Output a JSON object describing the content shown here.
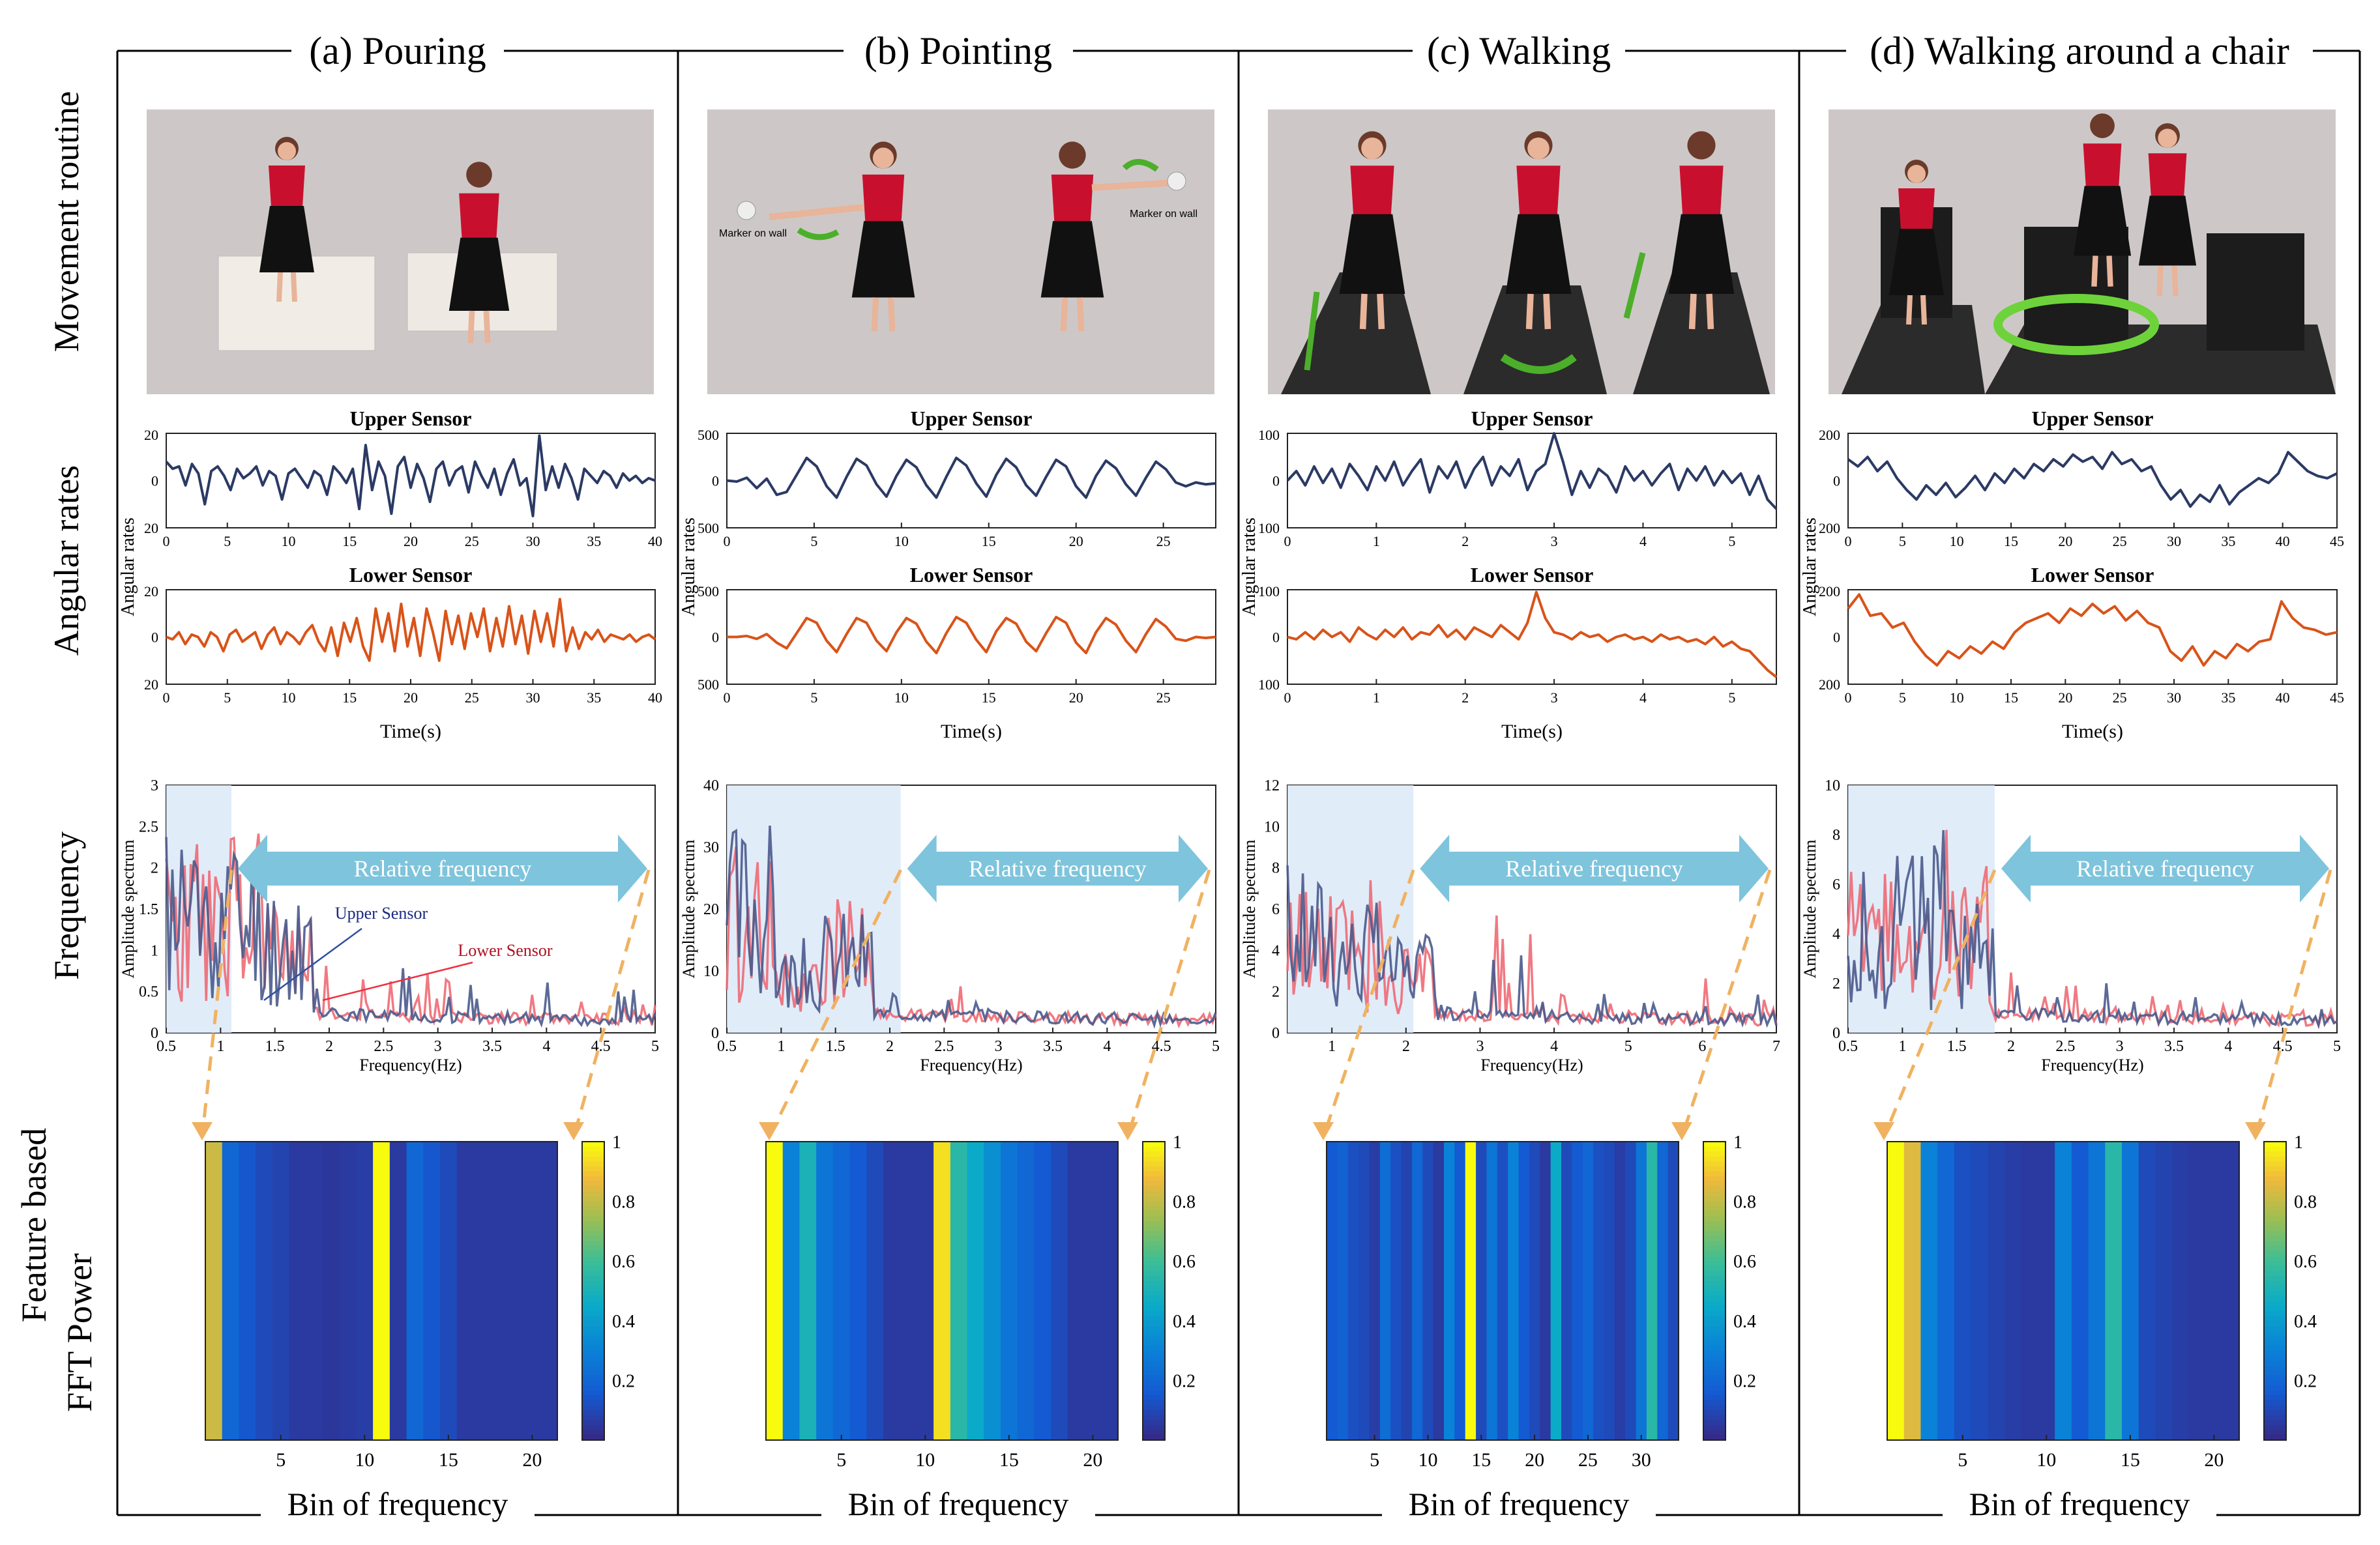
{
  "figure": {
    "row_labels": [
      "Movement routine",
      "Angular rates",
      "Frequency",
      "Feature based",
      "FFT Power"
    ],
    "signal_titles": {
      "upper": "Upper Sensor",
      "lower": "Lower Sensor"
    },
    "signal_ylabel": "Angular rates",
    "signal_xlabel": "Time(s)",
    "freq_ylabel": "Amplitude spectrum",
    "freq_xlabel": "Frequency(Hz)",
    "relative_label": "Relative frequency",
    "heatmap_xlabel": "Bin of frequency",
    "colorbar_ticks": [
      "0.2",
      "0.4",
      "0.6",
      "0.8",
      "1"
    ],
    "annot_upper": "Upper Sensor",
    "annot_lower": "Lower Sensor",
    "marker_label": "Marker on wall",
    "colors": {
      "upper": "#2b3a64",
      "lower": "#d95319",
      "freq_upper": "#4a5a8c",
      "freq_lower": "#ee6a74",
      "arrow": "#7ec4dc",
      "shade": "#dce9f8",
      "dashed": "#f0b261",
      "photo_bg": "#cdc8c7"
    }
  },
  "chart_data": [
    {
      "id": "pouring",
      "title": "(a) Pouring",
      "type": "line",
      "signal": {
        "xlim": [
          0,
          40
        ],
        "xticks": [
          0,
          5,
          10,
          15,
          20,
          25,
          30,
          35,
          40
        ],
        "ylim": [
          -20,
          20
        ],
        "yticks": [
          "20",
          "0",
          "20"
        ],
        "upper_series": [
          8,
          5,
          6,
          -2,
          7,
          3,
          -10,
          4,
          6,
          2,
          -4,
          5,
          1,
          3,
          6,
          -2,
          4,
          2,
          -8,
          3,
          5,
          1,
          -3,
          4,
          2,
          -6,
          6,
          3,
          -1,
          5,
          -12,
          15,
          -4,
          8,
          2,
          -14,
          6,
          10,
          -3,
          7,
          1,
          -9,
          5,
          8,
          -2,
          4,
          6,
          -5,
          8,
          2,
          -3,
          5,
          -6,
          3,
          9,
          -2,
          1,
          -15,
          19,
          -4,
          6,
          -3,
          7,
          1,
          -8,
          5,
          2,
          -1,
          4,
          2,
          -3,
          3,
          0,
          2,
          -1,
          1,
          0
        ],
        "lower_series": [
          0,
          -1,
          2,
          -3,
          1,
          0,
          -4,
          2,
          0,
          -6,
          1,
          3,
          -2,
          0,
          2,
          -5,
          1,
          4,
          -3,
          2,
          0,
          -3,
          2,
          5,
          -2,
          -6,
          4,
          -8,
          6,
          -2,
          8,
          -4,
          -10,
          12,
          -2,
          10,
          -6,
          14,
          -4,
          8,
          -8,
          12,
          2,
          -10,
          11,
          -3,
          9,
          -5,
          10,
          0,
          12,
          -6,
          8,
          -4,
          13,
          -3,
          9,
          -7,
          11,
          -2,
          10,
          -4,
          16,
          -6,
          4,
          -5,
          2,
          -1,
          3,
          -2,
          1,
          0,
          -1,
          1,
          -2,
          0,
          1,
          -1
        ]
      },
      "frequency": {
        "xlim": [
          0.5,
          5
        ],
        "xticks": [
          0.5,
          1,
          1.5,
          2,
          2.5,
          3,
          3.5,
          4,
          4.5,
          5
        ],
        "ylim": [
          0,
          3
        ],
        "yticks": [
          0,
          0.5,
          1,
          1.5,
          2,
          2.5,
          3
        ],
        "shade_to": 1.1,
        "upper_peaks": [
          2.5,
          2.4,
          1.8,
          1.3,
          1.6,
          1.1,
          0.9,
          1.0,
          0.8,
          0.7
        ],
        "lower_peaks": [
          2.2,
          2.6,
          1.5,
          1.7,
          1.2,
          1.3,
          0.8,
          0.9,
          0.7,
          0.6
        ]
      },
      "heatmap": {
        "bins": 21,
        "values": [
          0.82,
          0.2,
          0.14,
          0.1,
          0.08,
          0.05,
          0.05,
          0.04,
          0.05,
          0.06,
          1.0,
          0.05,
          0.2,
          0.14,
          0.1,
          0.05,
          0.05,
          0.05,
          0.05,
          0.05,
          0.05
        ],
        "xticks": [
          5,
          10,
          15,
          20
        ]
      }
    },
    {
      "id": "pointing",
      "title": "(b) Pointing",
      "type": "line",
      "signal": {
        "xlim": [
          0,
          28
        ],
        "xticks": [
          0,
          5,
          10,
          15,
          20,
          25
        ],
        "ylim": [
          -500,
          500
        ],
        "yticks": [
          "500",
          "0",
          "500"
        ],
        "upper_series": [
          0,
          -10,
          30,
          -80,
          20,
          -150,
          -120,
          60,
          240,
          150,
          -60,
          -180,
          40,
          230,
          160,
          -40,
          -170,
          50,
          220,
          140,
          -50,
          -180,
          40,
          240,
          160,
          -30,
          -170,
          60,
          230,
          140,
          -50,
          -160,
          40,
          220,
          150,
          -60,
          -180,
          50,
          210,
          130,
          -40,
          -160,
          30,
          200,
          120,
          -20,
          -60,
          -20,
          -40,
          -30
        ],
        "lower_series": [
          0,
          0,
          10,
          -20,
          30,
          -60,
          -120,
          40,
          200,
          150,
          -40,
          -160,
          30,
          200,
          150,
          -40,
          -150,
          50,
          200,
          140,
          -50,
          -170,
          40,
          210,
          150,
          -30,
          -160,
          60,
          200,
          140,
          -50,
          -150,
          40,
          210,
          150,
          -60,
          -170,
          50,
          200,
          130,
          -40,
          -160,
          30,
          190,
          110,
          -20,
          -40,
          0,
          -10,
          0
        ]
      },
      "frequency": {
        "xlim": [
          0.5,
          5
        ],
        "xticks": [
          0.5,
          1,
          1.5,
          2,
          2.5,
          3,
          3.5,
          4,
          4.5,
          5
        ],
        "ylim": [
          0,
          40
        ],
        "yticks": [
          0,
          10,
          20,
          30,
          40
        ],
        "shade_to": 2.1,
        "upper_peaks": [
          34,
          12,
          18,
          8,
          11,
          4,
          2,
          1.5,
          1,
          1
        ],
        "lower_peaks": [
          30,
          10,
          22,
          6,
          9,
          3,
          2,
          1,
          1,
          1
        ]
      },
      "heatmap": {
        "bins": 21,
        "values": [
          1.0,
          0.3,
          0.5,
          0.25,
          0.2,
          0.15,
          0.1,
          0.05,
          0.05,
          0.05,
          0.95,
          0.55,
          0.45,
          0.35,
          0.25,
          0.2,
          0.15,
          0.1,
          0.05,
          0.05,
          0.05
        ],
        "xticks": [
          5,
          10,
          15,
          20
        ]
      }
    },
    {
      "id": "walking",
      "title": "(c) Walking",
      "type": "line",
      "signal": {
        "xlim": [
          0,
          5.5
        ],
        "xticks": [
          0,
          1,
          2,
          3,
          4,
          5
        ],
        "ylim": [
          -100,
          100
        ],
        "yticks": [
          "100",
          "0",
          "100"
        ],
        "upper_series": [
          0,
          20,
          -10,
          30,
          -5,
          25,
          -15,
          35,
          10,
          -20,
          30,
          0,
          40,
          -10,
          20,
          45,
          -25,
          30,
          5,
          40,
          -15,
          25,
          50,
          -10,
          30,
          10,
          45,
          -20,
          20,
          35,
          100,
          40,
          -30,
          20,
          -15,
          25,
          10,
          -25,
          30,
          0,
          20,
          -10,
          15,
          35,
          -20,
          25,
          0,
          30,
          -10,
          20,
          -5,
          15,
          -30,
          10,
          -40,
          -60
        ],
        "lower_series": [
          0,
          -5,
          10,
          -5,
          15,
          0,
          10,
          -10,
          20,
          5,
          -5,
          15,
          0,
          20,
          -5,
          10,
          5,
          25,
          0,
          15,
          -5,
          20,
          10,
          0,
          25,
          10,
          -5,
          30,
          95,
          40,
          10,
          5,
          -5,
          10,
          0,
          5,
          -10,
          0,
          5,
          -5,
          0,
          -10,
          5,
          -5,
          0,
          -10,
          -5,
          -15,
          0,
          -20,
          -10,
          -25,
          -30,
          -50,
          -70,
          -85
        ]
      },
      "frequency": {
        "xlim": [
          0.4,
          7
        ],
        "xticks": [
          1,
          2,
          3,
          4,
          5,
          6,
          7
        ],
        "ylim": [
          0,
          12
        ],
        "yticks": [
          0,
          2,
          4,
          6,
          8,
          10,
          12
        ],
        "shade_to": 2.1,
        "upper_peaks": [
          8,
          6,
          4.5,
          3,
          6.5,
          2,
          2.5,
          2,
          3,
          4
        ],
        "lower_peaks": [
          6.5,
          7,
          3.5,
          2,
          10.3,
          2.5,
          2,
          2.5,
          6,
          1.5
        ]
      },
      "heatmap": {
        "bins": 33,
        "values": [
          0.15,
          0.18,
          0.12,
          0.1,
          0.06,
          0.22,
          0.12,
          0.08,
          0.2,
          0.1,
          0.05,
          0.3,
          0.15,
          1.0,
          0.1,
          0.25,
          0.12,
          0.3,
          0.15,
          0.1,
          0.05,
          0.45,
          0.1,
          0.15,
          0.2,
          0.12,
          0.1,
          0.06,
          0.1,
          0.25,
          0.55,
          0.2,
          0.1
        ],
        "xticks": [
          5,
          10,
          15,
          20,
          25,
          30
        ]
      }
    },
    {
      "id": "chair",
      "title": "(d) Walking around a chair",
      "type": "line",
      "signal": {
        "xlim": [
          0,
          45
        ],
        "xticks": [
          0,
          5,
          10,
          15,
          20,
          25,
          30,
          35,
          40,
          45
        ],
        "ylim": [
          -200,
          200
        ],
        "yticks": [
          "200",
          "0",
          "200"
        ],
        "upper_series": [
          90,
          60,
          100,
          40,
          80,
          10,
          -40,
          -80,
          -20,
          -60,
          -10,
          -70,
          -30,
          20,
          -40,
          30,
          -10,
          50,
          10,
          70,
          40,
          90,
          60,
          110,
          80,
          100,
          50,
          120,
          70,
          90,
          40,
          60,
          -20,
          -80,
          -40,
          -110,
          -60,
          -90,
          -20,
          -100,
          -50,
          -20,
          10,
          -10,
          30,
          120,
          80,
          40,
          20,
          10,
          30
        ],
        "lower_series": [
          120,
          180,
          90,
          100,
          40,
          60,
          -20,
          -80,
          -120,
          -60,
          -90,
          -40,
          -70,
          -20,
          -50,
          20,
          60,
          80,
          100,
          60,
          120,
          90,
          140,
          100,
          130,
          70,
          110,
          60,
          40,
          -60,
          -100,
          -40,
          -120,
          -60,
          -90,
          -30,
          -60,
          -20,
          -10,
          150,
          80,
          40,
          30,
          10,
          20
        ]
      },
      "frequency": {
        "xlim": [
          0.5,
          5
        ],
        "xticks": [
          0.5,
          1,
          1.5,
          2,
          2.5,
          3,
          3.5,
          4,
          4.5,
          5
        ],
        "ylim": [
          0,
          10
        ],
        "yticks": [
          0,
          2,
          4,
          6,
          8,
          10
        ],
        "shade_to": 1.85,
        "upper_peaks": [
          6,
          8,
          5,
          4,
          3,
          2.5,
          2.5,
          2,
          1.5,
          1.2
        ],
        "lower_peaks": [
          6.5,
          5,
          8.5,
          3.5,
          2.5,
          2,
          1.8,
          1.5,
          1.2,
          1
        ]
      },
      "heatmap": {
        "bins": 21,
        "values": [
          1.0,
          0.85,
          0.3,
          0.2,
          0.12,
          0.1,
          0.08,
          0.06,
          0.05,
          0.05,
          0.3,
          0.15,
          0.25,
          0.55,
          0.25,
          0.1,
          0.08,
          0.06,
          0.05,
          0.05,
          0.05
        ],
        "xticks": [
          5,
          10,
          15,
          20
        ]
      }
    }
  ]
}
